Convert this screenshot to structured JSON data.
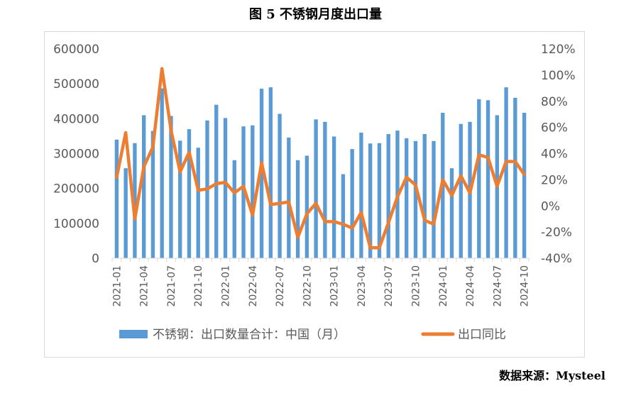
{
  "title": "图 5  不锈钢月度出口量",
  "source": "数据来源：Mysteel",
  "chart_data": {
    "type": "bar+line",
    "categories": [
      "2021-01",
      "2021-02",
      "2021-03",
      "2021-04",
      "2021-05",
      "2021-06",
      "2021-07",
      "2021-08",
      "2021-09",
      "2021-10",
      "2021-11",
      "2021-12",
      "2022-01",
      "2022-02",
      "2022-03",
      "2022-04",
      "2022-05",
      "2022-06",
      "2022-07",
      "2022-08",
      "2022-09",
      "2022-10",
      "2022-11",
      "2022-12",
      "2023-01",
      "2023-02",
      "2023-03",
      "2023-04",
      "2023-05",
      "2023-06",
      "2023-07",
      "2023-08",
      "2023-09",
      "2023-10",
      "2023-11",
      "2023-12",
      "2024-01",
      "2024-02",
      "2024-03",
      "2024-04",
      "2024-05",
      "2024-06",
      "2024-07",
      "2024-08",
      "2024-09",
      "2024-10"
    ],
    "x_tick_labels": [
      "2021-01",
      "2021-04",
      "2021-07",
      "2021-10",
      "2022-01",
      "2022-04",
      "2022-07",
      "2022-10",
      "2023-01",
      "2023-04",
      "2023-07",
      "2023-10",
      "2024-01",
      "2024-04",
      "2024-07",
      "2024-10"
    ],
    "series": [
      {
        "name": "不锈钢：出口数量合计：中国（月）",
        "type": "bar",
        "axis": "left",
        "color": "#5b9bd5",
        "values": [
          340000,
          258000,
          330000,
          410000,
          365000,
          487000,
          408000,
          337000,
          370000,
          317000,
          395000,
          440000,
          402000,
          281000,
          378000,
          381000,
          486000,
          490000,
          414000,
          346000,
          281000,
          294000,
          398000,
          391000,
          349000,
          241000,
          313000,
          360000,
          329000,
          330000,
          356000,
          366000,
          344000,
          336000,
          356000,
          336000,
          417000,
          258000,
          385000,
          391000,
          456000,
          453000,
          410000,
          490000,
          460000,
          417000
        ]
      },
      {
        "name": "出口同比",
        "type": "line",
        "axis": "right",
        "color": "#ed7d31",
        "values": [
          22,
          56,
          -10,
          30,
          45,
          105,
          58,
          26,
          41,
          12,
          13,
          17,
          18,
          10,
          15,
          -7,
          33,
          1,
          2,
          3,
          -24,
          -6,
          2,
          -12,
          -12,
          -14,
          -17,
          -5,
          -32,
          -32,
          -13,
          7,
          22,
          16,
          -11,
          -14,
          20,
          8,
          23,
          10,
          39,
          37,
          15,
          34,
          34,
          24
        ]
      }
    ],
    "y_left": {
      "min": 0,
      "max": 600000,
      "step": 100000,
      "tick_labels": [
        "0",
        "100000",
        "200000",
        "300000",
        "400000",
        "500000",
        "600000"
      ]
    },
    "y_right": {
      "min": -40,
      "max": 120,
      "step": 20,
      "tick_labels": [
        "-40%",
        "-20%",
        "0%",
        "20%",
        "40%",
        "60%",
        "80%",
        "100%",
        "120%"
      ]
    },
    "grid": false,
    "legend": "bottom"
  }
}
